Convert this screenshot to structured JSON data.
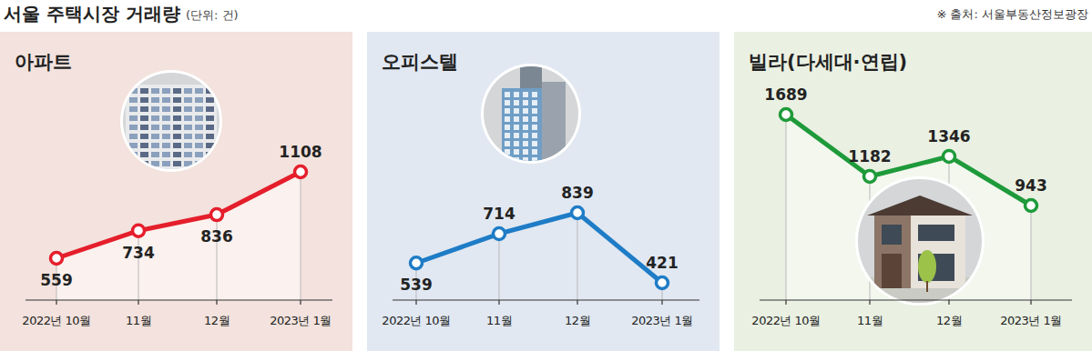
{
  "title": "서울 주택시장 거래량",
  "unit": "(단위: 건)",
  "source": "※ 출처: 서울부동산정보광장",
  "chart_data": [
    {
      "type": "line",
      "title": "아파트",
      "categories": [
        "2022년 10월",
        "11월",
        "12월",
        "2023년 1월"
      ],
      "values": [
        559,
        734,
        836,
        1108
      ],
      "color": "#e51e2b",
      "marker": "circle",
      "data_labels": true,
      "tick_labels": "x"
    },
    {
      "type": "line",
      "title": "오피스텔",
      "categories": [
        "2022년 10월",
        "11월",
        "12월",
        "2023년 1월"
      ],
      "values": [
        539,
        714,
        839,
        421
      ],
      "color": "#1f7cc6",
      "marker": "circle",
      "data_labels": true,
      "tick_labels": "x"
    },
    {
      "type": "line",
      "title": "빌라(다세대·연립)",
      "categories": [
        "2022년 10월",
        "11월",
        "12월",
        "2023년 1월"
      ],
      "values": [
        1689,
        1182,
        1346,
        943
      ],
      "color": "#1e9a3a",
      "marker": "circle",
      "data_labels": true,
      "tick_labels": "x"
    }
  ]
}
